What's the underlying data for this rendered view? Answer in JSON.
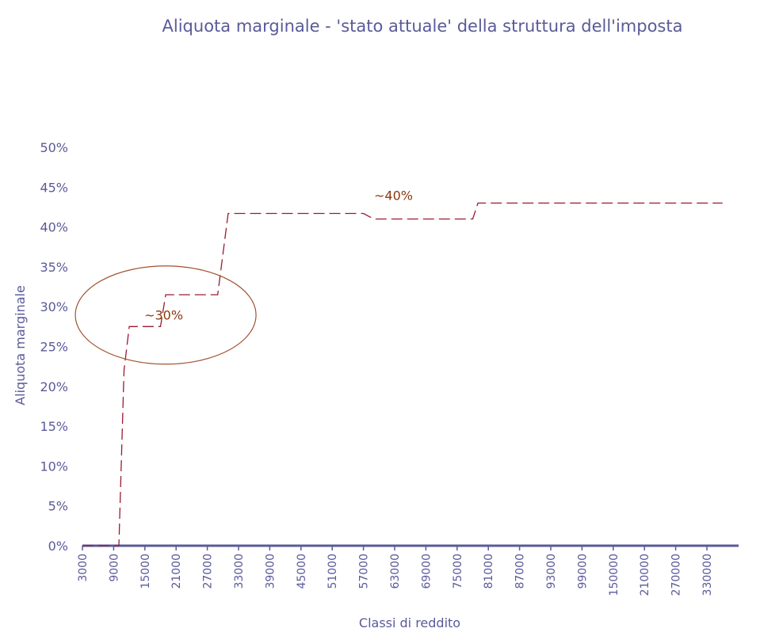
{
  "chart_data": {
    "type": "line",
    "title": "Aliquota marginale - 'stato attuale' della struttura dell'imposta",
    "xlabel": "Classi di reddito",
    "ylabel": "Aliquota marginale",
    "x_tick_labels": [
      "3000",
      "9000",
      "15000",
      "21000",
      "27000",
      "33000",
      "39000",
      "45000",
      "51000",
      "57000",
      "63000",
      "69000",
      "75000",
      "81000",
      "87000",
      "93000",
      "99000",
      "150000",
      "210000",
      "270000",
      "330000"
    ],
    "y_tick_labels": [
      "0%",
      "5%",
      "10%",
      "15%",
      "20%",
      "25%",
      "30%",
      "35%",
      "40%",
      "45%",
      "50%"
    ],
    "ylim": [
      0,
      0.5
    ],
    "grid": false,
    "legend": "none",
    "series": [
      {
        "x": [
          "3000",
          "6000",
          "9000",
          "10000",
          "11000",
          "12000",
          "15000",
          "18000",
          "19000",
          "21000",
          "24000",
          "27000",
          "29000",
          "31000",
          "33000",
          "39000",
          "45000",
          "51000",
          "57000",
          "59000",
          "63000",
          "69000",
          "75000",
          "78000",
          "79000",
          "81000",
          "87000",
          "93000",
          "99000",
          "150000",
          "210000",
          "270000",
          "330000",
          "360000"
        ],
        "values": [
          0,
          0,
          0,
          0,
          0.22,
          0.275,
          0.275,
          0.275,
          0.315,
          0.315,
          0.315,
          0.315,
          0.315,
          0.417,
          0.417,
          0.417,
          0.417,
          0.417,
          0.417,
          0.41,
          0.41,
          0.41,
          0.41,
          0.41,
          0.43,
          0.43,
          0.43,
          0.43,
          0.43,
          0.43,
          0.43,
          0.43,
          0.43,
          0.43
        ],
        "color": "#9B1B30",
        "style": "dashed"
      }
    ],
    "annotations": [
      {
        "text": "~30%",
        "x": "19000",
        "y": 0.29,
        "shape": "ellipse"
      },
      {
        "text": "~40%",
        "x": "63000",
        "y": 0.44
      }
    ],
    "colors": {
      "title": "#5A5A9A",
      "axis_labels": "#5A5A9A",
      "axis_line": "#5A5A9A",
      "series": "#9B1B30",
      "annotation": "#8B3A10",
      "ellipse": "#A0522D"
    }
  }
}
